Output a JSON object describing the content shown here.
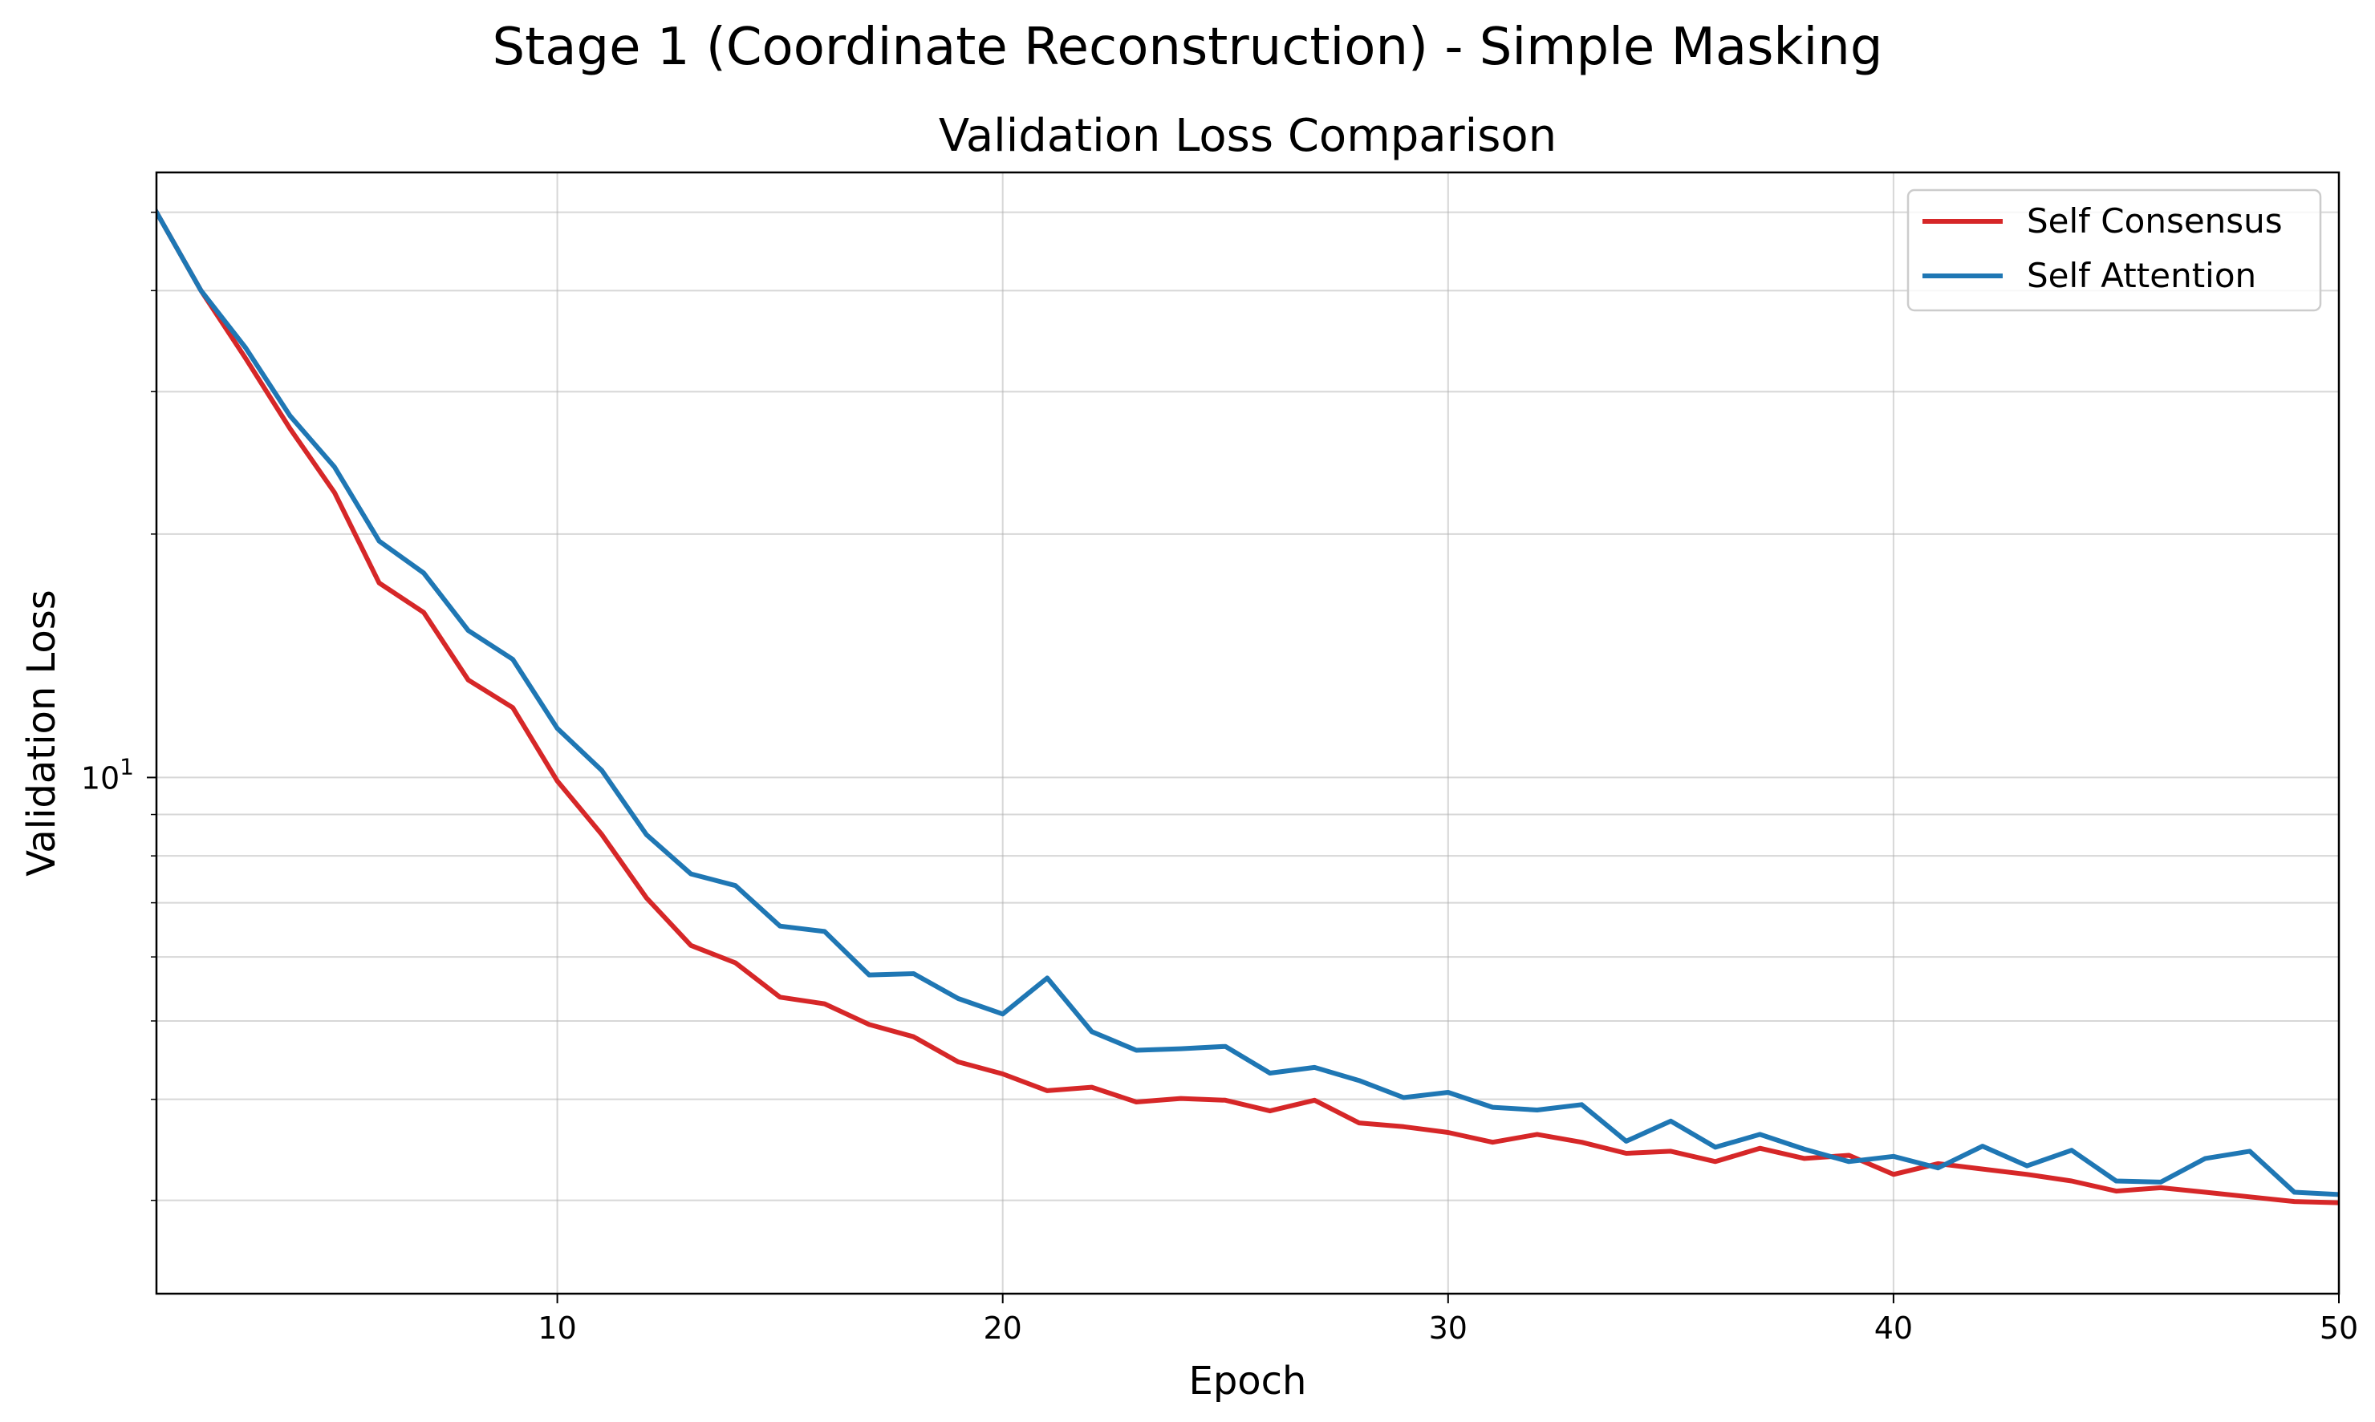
{
  "chart_data": {
    "type": "line",
    "suptitle": "Stage 1 (Coordinate Reconstruction) - Simple Masking",
    "title": "Validation Loss Comparison",
    "xlabel": "Epoch",
    "ylabel": "Validation Loss",
    "xlim": [
      1,
      50
    ],
    "ylim": [
      2.3,
      56
    ],
    "yscale": "log",
    "x_ticks": [
      10,
      20,
      30,
      40,
      50
    ],
    "y_major_tick": {
      "value": 10,
      "base": "10",
      "exponent": "1"
    },
    "grid": true,
    "legend_position": "top-right",
    "x": [
      1,
      2,
      3,
      4,
      5,
      6,
      7,
      8,
      9,
      10,
      11,
      12,
      13,
      14,
      15,
      16,
      17,
      18,
      19,
      20,
      21,
      22,
      23,
      24,
      25,
      26,
      27,
      28,
      29,
      30,
      31,
      32,
      33,
      34,
      35,
      36,
      37,
      38,
      39,
      40,
      41,
      42,
      43,
      44,
      45,
      46,
      47,
      48,
      49,
      50
    ],
    "series": [
      {
        "name": "Self Consensus",
        "color": "#d62728",
        "values": [
          50,
          40,
          33,
          27,
          22.5,
          17.4,
          16.0,
          13.2,
          12.2,
          9.9,
          8.5,
          7.1,
          6.2,
          5.9,
          5.35,
          5.25,
          4.95,
          4.78,
          4.45,
          4.3,
          4.1,
          4.14,
          3.97,
          4.01,
          3.99,
          3.87,
          3.99,
          3.74,
          3.7,
          3.64,
          3.54,
          3.62,
          3.54,
          3.43,
          3.45,
          3.35,
          3.48,
          3.38,
          3.41,
          3.23,
          3.33,
          3.28,
          3.23,
          3.17,
          3.08,
          3.11,
          3.07,
          3.03,
          2.99,
          2.98
        ]
      },
      {
        "name": "Self Attention",
        "color": "#1f77b4",
        "values": [
          50,
          40,
          34,
          28,
          24.2,
          19.6,
          17.9,
          15.2,
          14.0,
          11.5,
          10.2,
          8.5,
          7.6,
          7.35,
          6.55,
          6.45,
          5.7,
          5.72,
          5.33,
          5.1,
          5.65,
          4.85,
          4.6,
          4.62,
          4.65,
          4.31,
          4.38,
          4.22,
          4.02,
          4.08,
          3.91,
          3.88,
          3.94,
          3.55,
          3.76,
          3.49,
          3.62,
          3.47,
          3.35,
          3.4,
          3.29,
          3.5,
          3.31,
          3.46,
          3.17,
          3.16,
          3.38,
          3.45,
          3.07,
          3.05
        ]
      }
    ]
  }
}
